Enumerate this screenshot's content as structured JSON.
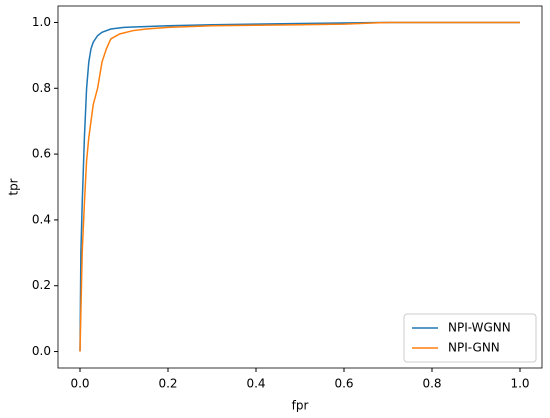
{
  "chart_data": {
    "type": "line",
    "xlabel": "fpr",
    "ylabel": "tpr",
    "xlim": [
      -0.05,
      1.05
    ],
    "ylim": [
      -0.05,
      1.05
    ],
    "xticks": [
      {
        "value": 0,
        "label": "0.0"
      },
      0.2,
      0.4,
      0.6,
      0.8,
      {
        "value": 1,
        "label": "1.0"
      }
    ],
    "yticks": [
      {
        "value": 0,
        "label": "0.0"
      },
      0.2,
      0.4,
      0.6,
      0.8,
      {
        "value": 1,
        "label": "1.0"
      }
    ],
    "legend": "lower right",
    "series": [
      {
        "name": "NPI-WGNN",
        "color": "#1f77b4",
        "x": [
          0,
          0.002,
          0.005,
          0.01,
          0.015,
          0.02,
          0.025,
          0.03,
          0.04,
          0.05,
          0.07,
          0.1,
          0.2,
          0.3,
          0.5,
          0.7,
          1
        ],
        "values": [
          0,
          0.3,
          0.45,
          0.65,
          0.8,
          0.88,
          0.92,
          0.94,
          0.96,
          0.97,
          0.98,
          0.985,
          0.99,
          0.993,
          0.997,
          1,
          1
        ]
      },
      {
        "name": "NPI-GNN",
        "color": "#ff7f0e",
        "x": [
          0,
          0.005,
          0.01,
          0.015,
          0.02,
          0.03,
          0.04,
          0.05,
          0.06,
          0.07,
          0.09,
          0.12,
          0.15,
          0.2,
          0.3,
          0.5,
          0.6,
          0.7,
          1
        ],
        "values": [
          0,
          0.3,
          0.45,
          0.58,
          0.65,
          0.75,
          0.8,
          0.88,
          0.92,
          0.95,
          0.965,
          0.975,
          0.98,
          0.985,
          0.99,
          0.993,
          0.995,
          1,
          1
        ]
      }
    ]
  }
}
